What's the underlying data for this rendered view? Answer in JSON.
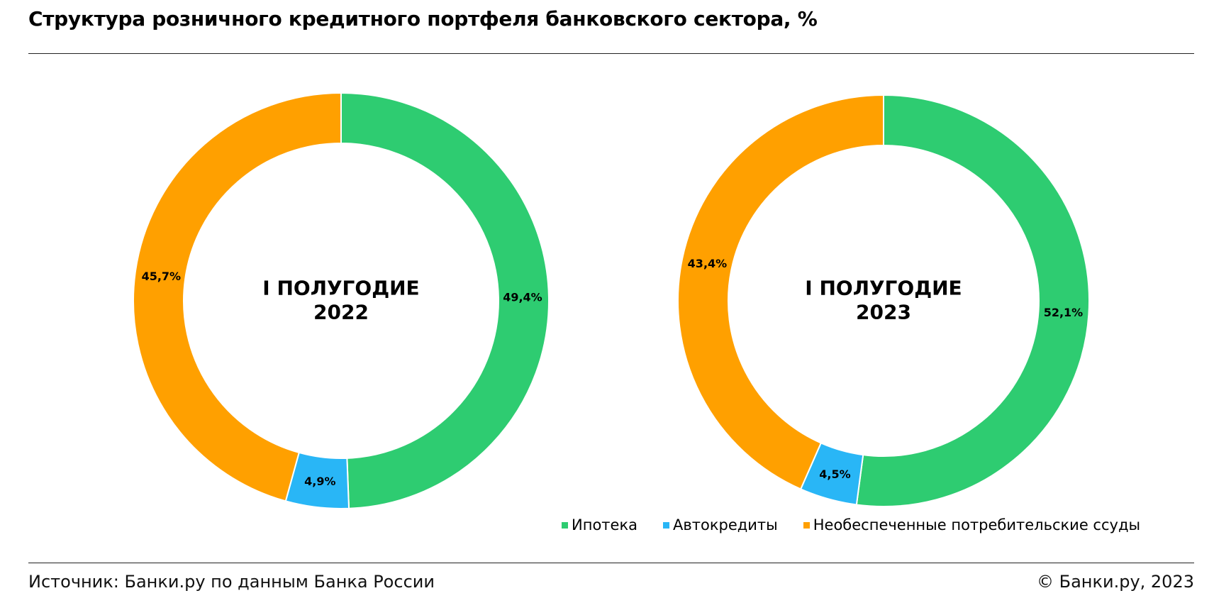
{
  "title": "Структура розничного кредитного портфеля банковского сектора, %",
  "footer": {
    "source": "Источник: Банки.ру по данным Банка России",
    "copyright": "© Банки.ру, 2023"
  },
  "colors": {
    "mortgage": "#2ecc71",
    "auto": "#29b6f6",
    "unsecured": "#ffa000"
  },
  "legend": [
    {
      "label": "Ипотека",
      "color": "#2ecc71"
    },
    {
      "label": "Автокредиты",
      "color": "#29b6f6"
    },
    {
      "label": "Необеспеченные потребительские ссуды",
      "color": "#ffa000"
    }
  ],
  "chart_data": [
    {
      "type": "pie",
      "variant": "donut",
      "center_label": [
        "I ПОЛУГОДИЕ",
        "2022"
      ],
      "categories": [
        "Ипотека",
        "Автокредиты",
        "Необеспеченные потребительские ссуды"
      ],
      "values": [
        49.4,
        4.9,
        45.7
      ],
      "labels": [
        "49,4%",
        "4,9%",
        "45,7%"
      ],
      "colors": [
        "#2ecc71",
        "#29b6f6",
        "#ffa000"
      ]
    },
    {
      "type": "pie",
      "variant": "donut",
      "center_label": [
        "I ПОЛУГОДИЕ",
        "2023"
      ],
      "categories": [
        "Ипотека",
        "Автокредиты",
        "Необеспеченные потребительские ссуды"
      ],
      "values": [
        52.1,
        4.5,
        43.4
      ],
      "labels": [
        "52,1%",
        "4,5%",
        "43,4%"
      ],
      "colors": [
        "#2ecc71",
        "#29b6f6",
        "#ffa000"
      ]
    }
  ]
}
